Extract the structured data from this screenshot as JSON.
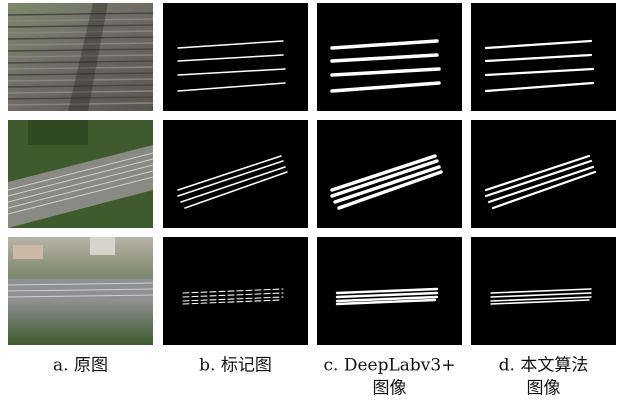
{
  "columns": [
    {
      "caption": [
        "a. 原图"
      ]
    },
    {
      "caption": [
        "b. 标记图"
      ]
    },
    {
      "caption": [
        "c. DeepLabv3+",
        "图像"
      ]
    },
    {
      "caption": [
        "d. 本文算法",
        "图像"
      ]
    }
  ]
}
